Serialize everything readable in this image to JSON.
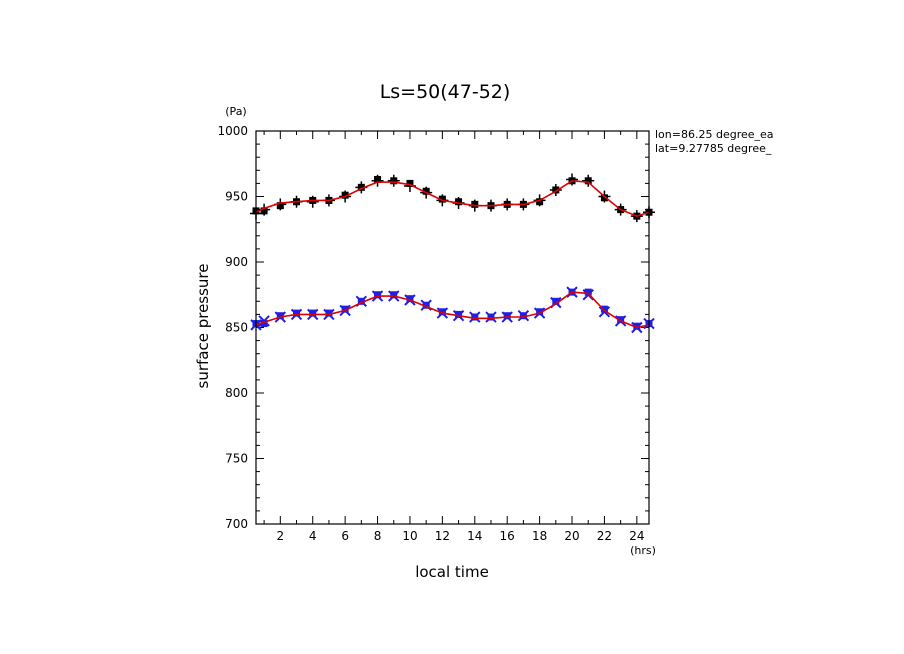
{
  "chart_data": {
    "type": "line",
    "title": "Ls=50(47-52)",
    "xlabel": "local time",
    "ylabel": "surface pressure",
    "x_unit": "(hrs)",
    "y_unit": "(Pa)",
    "xlim": [
      0.5,
      24.75
    ],
    "ylim": [
      700,
      1000
    ],
    "xticks": [
      2,
      4,
      6,
      8,
      10,
      12,
      14,
      16,
      18,
      20,
      22,
      24
    ],
    "yticks": [
      700,
      750,
      800,
      850,
      900,
      950,
      1000
    ],
    "grid": false,
    "annotations": [
      "lon=86.25 degree_ea",
      "lat=9.27785 degree_"
    ],
    "colors": {
      "upper_markers": "#000000",
      "lower_markers": "#1f1fe6",
      "fit_line": "#e00000"
    },
    "x": [
      0.5,
      1,
      2,
      3,
      4,
      5,
      6,
      7,
      8,
      9,
      10,
      11,
      12,
      13,
      14,
      15,
      16,
      17,
      18,
      19,
      20,
      21,
      22,
      23,
      24,
      24.75
    ],
    "series": [
      {
        "marker": "+",
        "values": [
          937,
          940,
          944,
          946,
          946,
          947,
          950,
          957,
          962,
          962,
          958,
          953,
          947,
          945,
          943,
          943,
          944,
          944,
          947,
          955,
          963,
          962,
          950,
          940,
          935,
          938
        ]
      },
      {
        "marker": "square",
        "values": [
          939,
          939,
          943,
          946,
          947,
          947,
          951,
          957,
          963,
          962,
          960,
          954,
          948,
          946,
          944,
          943,
          944,
          944,
          946,
          955,
          962,
          962,
          949,
          940,
          935,
          938
        ]
      },
      {
        "marker": "x",
        "values": [
          852,
          855,
          858,
          860,
          860,
          860,
          863,
          870,
          874,
          874,
          871,
          867,
          861,
          859,
          858,
          858,
          858,
          859,
          861,
          869,
          877,
          875,
          862,
          855,
          850,
          853
        ]
      },
      {
        "marker": "square",
        "values": [
          853,
          853,
          859,
          861,
          861,
          861,
          864,
          870,
          875,
          875,
          872,
          867,
          862,
          860,
          858,
          858,
          859,
          859,
          862,
          870,
          877,
          877,
          864,
          856,
          851,
          853
        ]
      },
      {
        "marker": "line",
        "values": [
          938,
          941,
          945,
          946,
          947,
          947,
          950,
          956,
          961,
          961,
          959,
          953,
          947,
          945,
          943,
          943,
          944,
          944,
          947,
          954,
          962,
          961,
          950,
          940,
          935,
          938
        ]
      },
      {
        "marker": "line",
        "values": [
          852,
          854,
          858,
          860,
          860,
          860,
          863,
          869,
          874,
          874,
          871,
          866,
          861,
          859,
          857,
          857,
          858,
          858,
          861,
          868,
          877,
          876,
          863,
          855,
          850,
          852
        ]
      }
    ]
  }
}
